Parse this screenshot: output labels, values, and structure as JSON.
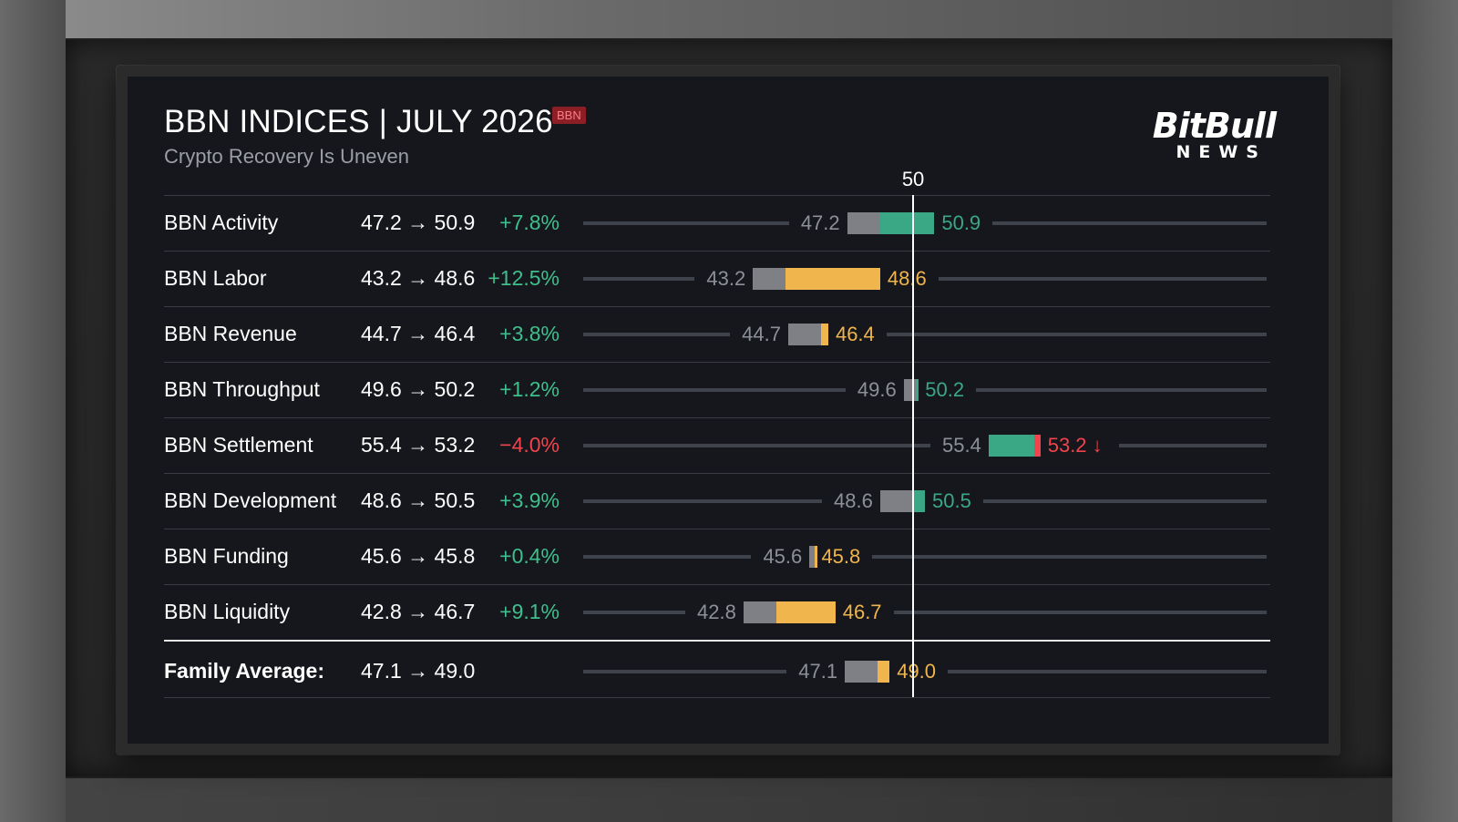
{
  "header": {
    "title": "BBN INDICES | JULY 2026",
    "badge": "BBN",
    "subtitle": "Crypto Recovery Is Uneven"
  },
  "logo": {
    "line1": "BitBull",
    "line2": "NEWS"
  },
  "colors": {
    "up": "#3aa885",
    "partial": "#f0b54c",
    "prior": "#7f7f86",
    "positive_text": "#3fbf8c",
    "negative_text": "#f0434d",
    "track": "#3e434c",
    "reference_line": "#ffffff"
  },
  "chart_data": {
    "type": "bar",
    "style": "range bars from previous to current value, with a reference line at 50",
    "reference_value": 50,
    "reference_label": "50",
    "xlim": [
      36,
      65
    ],
    "rows": [
      {
        "label": "BBN Activity",
        "from": 47.2,
        "to": 50.9,
        "from_text": "47.2",
        "to_text": "50.9",
        "values_text": "47.2 → 50.9",
        "change": "+7.8%",
        "direction": "up",
        "color": "#3aa885"
      },
      {
        "label": "BBN Labor",
        "from": 43.2,
        "to": 48.6,
        "from_text": "43.2",
        "to_text": "48.6",
        "values_text": "43.2 → 48.6",
        "change": "+12.5%",
        "direction": "up",
        "color": "#f0b54c"
      },
      {
        "label": "BBN Revenue",
        "from": 44.7,
        "to": 46.4,
        "from_text": "44.7",
        "to_text": "46.4",
        "values_text": "44.7 → 46.4",
        "change": "+3.8%",
        "direction": "up",
        "color": "#f0b54c"
      },
      {
        "label": "BBN Throughput",
        "from": 49.6,
        "to": 50.2,
        "from_text": "49.6",
        "to_text": "50.2",
        "values_text": "49.6 → 50.2",
        "change": "+1.2%",
        "direction": "up",
        "color": "#3aa885"
      },
      {
        "label": "BBN Settlement",
        "from": 55.4,
        "to": 53.2,
        "from_text": "55.4",
        "to_text": "53.2 ↓",
        "values_text": "55.4 → 53.2",
        "change": "−4.0%",
        "direction": "down",
        "color": "#3aa885"
      },
      {
        "label": "BBN Development",
        "from": 48.6,
        "to": 50.5,
        "from_text": "48.6",
        "to_text": "50.5",
        "values_text": "48.6 → 50.5",
        "change": "+3.9%",
        "direction": "up",
        "color": "#3aa885"
      },
      {
        "label": "BBN Funding",
        "from": 45.6,
        "to": 45.8,
        "from_text": "45.6",
        "to_text": "45.8",
        "values_text": "45.6 → 45.8",
        "change": "+0.4%",
        "direction": "up",
        "color": "#f0b54c"
      },
      {
        "label": "BBN Liquidity",
        "from": 42.8,
        "to": 46.7,
        "from_text": "42.8",
        "to_text": "46.7",
        "values_text": "42.8 → 46.7",
        "change": "+9.1%",
        "direction": "up",
        "color": "#f0b54c"
      }
    ],
    "summary": {
      "label": "Family Average:",
      "from": 47.1,
      "to": 49.0,
      "from_text": "47.1",
      "to_text": "49.0",
      "values_text": "47.1 → 49.0",
      "change": "",
      "direction": "up",
      "color": "#f0b54c"
    }
  }
}
